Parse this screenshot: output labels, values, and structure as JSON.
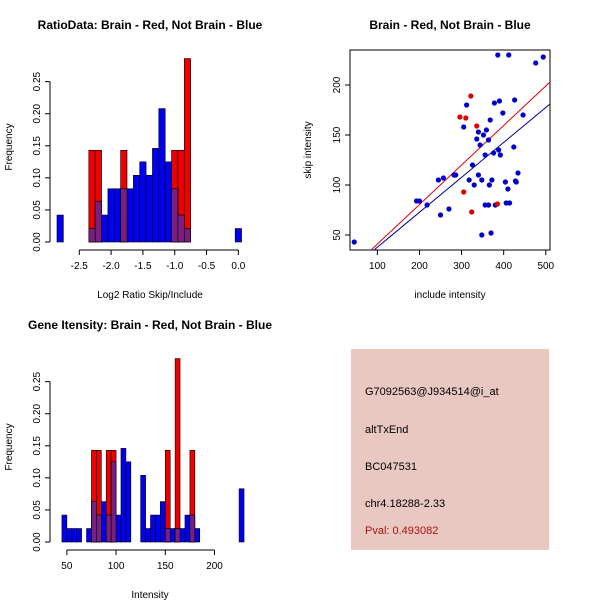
{
  "chart_data": [
    {
      "type": "bar",
      "id": "ratio-histogram",
      "title": "RatioData: Brain - Red, Not Brain - Blue",
      "xlabel": "Log2 Ratio Skip/Include",
      "ylabel": "Frequency",
      "xlim": [
        -2.85,
        0.12
      ],
      "ylim": [
        0,
        0.29
      ],
      "xticks": [
        -2.5,
        -2.0,
        -1.5,
        -1.0,
        -0.5,
        0.0
      ],
      "xtick_labels": [
        "-2.5",
        "-2.0",
        "-1.5",
        "-1.0",
        "-0.5",
        "0.0"
      ],
      "yticks": [
        0,
        0.05,
        0.1,
        0.15,
        0.2,
        0.25
      ],
      "ytick_labels": [
        "0.00",
        "0.05",
        "0.10",
        "0.15",
        "0.20",
        "0.25"
      ],
      "bin_width": 0.1,
      "series": [
        {
          "name": "Not Brain",
          "color": "#0000ee",
          "bins": [
            [
              -2.85,
              0.042
            ],
            [
              -2.35,
              0.021
            ],
            [
              -2.25,
              0.063
            ],
            [
              -2.15,
              0.042
            ],
            [
              -2.05,
              0.083
            ],
            [
              -1.95,
              0.083
            ],
            [
              -1.85,
              0.083
            ],
            [
              -1.75,
              0.083
            ],
            [
              -1.65,
              0.104
            ],
            [
              -1.55,
              0.125
            ],
            [
              -1.45,
              0.104
            ],
            [
              -1.35,
              0.146
            ],
            [
              -1.25,
              0.208
            ],
            [
              -1.15,
              0.125
            ],
            [
              -1.05,
              0.083
            ],
            [
              -0.95,
              0.042
            ],
            [
              -0.85,
              0.021
            ],
            [
              -0.05,
              0.021
            ]
          ]
        },
        {
          "name": "Brain",
          "color": "#ee0000",
          "bins": [
            [
              -2.35,
              0.143
            ],
            [
              -2.25,
              0.143
            ],
            [
              -1.85,
              0.143
            ],
            [
              -1.05,
              0.143
            ],
            [
              -0.95,
              0.143
            ],
            [
              -0.85,
              0.286
            ]
          ]
        }
      ],
      "overlap_color": "#7a1e80"
    },
    {
      "type": "scatter",
      "id": "skip-include-scatter",
      "title": "Brain - Red, Not Brain - Blue",
      "xlabel": "include intensity",
      "ylabel": "skip intensity",
      "xlim": [
        35,
        510
      ],
      "ylim": [
        35,
        235
      ],
      "xticks": [
        100,
        200,
        300,
        400,
        500
      ],
      "xtick_labels": [
        "100",
        "200",
        "300",
        "400",
        "500"
      ],
      "yticks": [
        50,
        100,
        150,
        200
      ],
      "ytick_labels": [
        "50",
        "100",
        "150",
        "200"
      ],
      "series": [
        {
          "name": "Not Brain",
          "color": "#0000cc",
          "points": [
            [
              45,
              43
            ],
            [
              193,
              84
            ],
            [
              200,
              84
            ],
            [
              218,
              80
            ],
            [
              245,
              105
            ],
            [
              250,
              70
            ],
            [
              257,
              107
            ],
            [
              270,
              76
            ],
            [
              282,
              110
            ],
            [
              286,
              110
            ],
            [
              305,
              158
            ],
            [
              312,
              180
            ],
            [
              318,
              105
            ],
            [
              326,
              120
            ],
            [
              330,
              100
            ],
            [
              336,
              146
            ],
            [
              340,
              110
            ],
            [
              340,
              153
            ],
            [
              344,
              140
            ],
            [
              348,
              50
            ],
            [
              348,
              105
            ],
            [
              352,
              150
            ],
            [
              356,
              80
            ],
            [
              356,
              130
            ],
            [
              359,
              155
            ],
            [
              364,
              80
            ],
            [
              364,
              145
            ],
            [
              366,
              100
            ],
            [
              368,
              165
            ],
            [
              370,
              52
            ],
            [
              372,
              105
            ],
            [
              376,
              132
            ],
            [
              378,
              182
            ],
            [
              380,
              80
            ],
            [
              386,
              230
            ],
            [
              388,
              135
            ],
            [
              390,
              184
            ],
            [
              392,
              130
            ],
            [
              398,
              172
            ],
            [
              404,
              103
            ],
            [
              406,
              82
            ],
            [
              410,
              96
            ],
            [
              412,
              230
            ],
            [
              414,
              82
            ],
            [
              424,
              138
            ],
            [
              426,
              185
            ],
            [
              428,
              104
            ],
            [
              430,
              103
            ],
            [
              434,
              112
            ],
            [
              446,
              170
            ],
            [
              476,
              222
            ],
            [
              494,
              228
            ]
          ]
        },
        {
          "name": "Brain",
          "color": "#dd0000",
          "points": [
            [
              296,
              168
            ],
            [
              305,
              93
            ],
            [
              310,
              167
            ],
            [
              322,
              189
            ],
            [
              324,
              73
            ],
            [
              336,
              159
            ],
            [
              385,
              81
            ]
          ]
        }
      ],
      "fit_lines": [
        {
          "name": "Brain fit",
          "color": "#dd0000",
          "from": [
            85,
            35
          ],
          "to": [
            510,
            203
          ]
        },
        {
          "name": "Not Brain fit",
          "color": "#000099",
          "from": [
            92,
            35
          ],
          "to": [
            510,
            181
          ]
        }
      ]
    },
    {
      "type": "bar",
      "id": "gene-intensity-histogram",
      "title": "Gene Itensity: Brain - Red, Not Brain - Blue",
      "xlabel": "Intensity",
      "ylabel": "Frequency",
      "xlim": [
        40,
        232
      ],
      "ylim": [
        0,
        0.29
      ],
      "xticks": [
        50,
        100,
        150,
        200
      ],
      "xtick_labels": [
        "50",
        "100",
        "150",
        "200"
      ],
      "yticks": [
        0,
        0.05,
        0.1,
        0.15,
        0.2,
        0.25
      ],
      "ytick_labels": [
        "0.00",
        "0.05",
        "0.10",
        "0.15",
        "0.20",
        "0.25"
      ],
      "bin_width": 5,
      "series": [
        {
          "name": "Not Brain",
          "color": "#0000ee",
          "bins": [
            [
              45,
              0.042
            ],
            [
              50,
              0.021
            ],
            [
              55,
              0.021
            ],
            [
              60,
              0.021
            ],
            [
              70,
              0.021
            ],
            [
              75,
              0.063
            ],
            [
              80,
              0.042
            ],
            [
              85,
              0.063
            ],
            [
              90,
              0.042
            ],
            [
              95,
              0.125
            ],
            [
              100,
              0.042
            ],
            [
              105,
              0.146
            ],
            [
              110,
              0.125
            ],
            [
              125,
              0.104
            ],
            [
              130,
              0.021
            ],
            [
              135,
              0.042
            ],
            [
              140,
              0.042
            ],
            [
              145,
              0.063
            ],
            [
              150,
              0.021
            ],
            [
              155,
              0.021
            ],
            [
              160,
              0.021
            ],
            [
              165,
              0.021
            ],
            [
              170,
              0.042
            ],
            [
              175,
              0.042
            ],
            [
              180,
              0.021
            ],
            [
              225,
              0.083
            ]
          ]
        },
        {
          "name": "Brain",
          "color": "#ee0000",
          "bins": [
            [
              75,
              0.143
            ],
            [
              80,
              0.143
            ],
            [
              90,
              0.143
            ],
            [
              95,
              0.143
            ],
            [
              150,
              0.143
            ],
            [
              160,
              0.286
            ],
            [
              175,
              0.143
            ]
          ]
        }
      ],
      "overlap_color": "#7a1e80"
    }
  ],
  "info_panel": {
    "probe_id": "G7092563@J934514@i_at",
    "event_type": "altTxEnd",
    "accession": "BC047531",
    "location": "chr4.18288-2.33",
    "pval": "Pval: 0.493082",
    "background_color": "#e8c8c0",
    "pval_color": "#b01010"
  }
}
